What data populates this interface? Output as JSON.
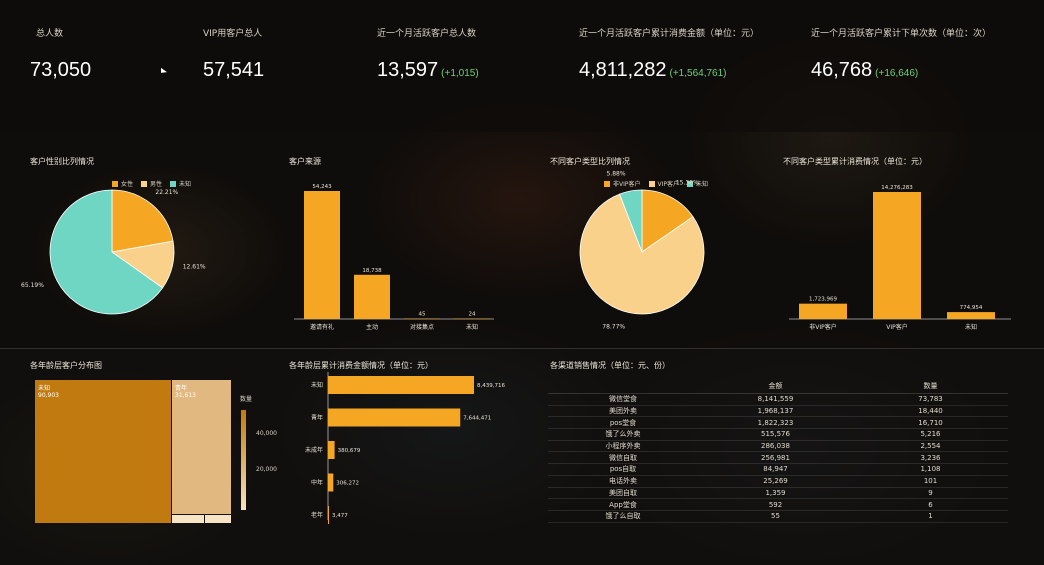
{
  "colors": {
    "orange": "#f5a623",
    "light_orange": "#f9d18a",
    "teal": "#6fd6c3",
    "dark_orange": "#c07a10",
    "tan": "#e0b880",
    "green": "#6fd07a"
  },
  "kpis": [
    {
      "label": "总人数",
      "value": "73,050",
      "delta": ""
    },
    {
      "label": "VIP用客户总人",
      "value": "57,541",
      "delta": ""
    },
    {
      "label": "近一个月活跃客户总人数",
      "value": "13,597",
      "delta": "(+1,015)"
    },
    {
      "label": "近一个月活跃客户累计消费金额（单位：元）",
      "value": "4,811,282",
      "delta": "(+1,564,761)"
    },
    {
      "label": "近一个月活跃客户累计下单次数（单位：次）",
      "value": "46,768",
      "delta": "(+16,646)"
    }
  ],
  "panels": {
    "gender": "客户性别比列情况",
    "source": "客户来源",
    "type_ratio": "不同客户类型比列情况",
    "type_spend": "不同客户类型累计消费情况（单位：元）",
    "age_dist": "各年龄层客户分布图",
    "age_spend": "各年龄层累计消费金额情况（单位：元）",
    "channel": "各渠道销售情况（单位：元、份）"
  },
  "legends": {
    "gender": [
      "女性",
      "男性",
      "未知"
    ],
    "type": [
      "非VIP客户",
      "VIP客户",
      "未知"
    ]
  },
  "treemap": {
    "big_label": "未知",
    "big_value": "90,903",
    "small_label": "青年",
    "small_value": "31,613",
    "legend_title": "数量",
    "ticks": [
      "40,000",
      "20,000"
    ]
  },
  "chart_data": [
    {
      "type": "pie",
      "title": "客户性别比列情况",
      "labels": [
        "女性",
        "男性",
        "未知"
      ],
      "values": [
        22.21,
        12.61,
        65.19
      ],
      "data_labels": [
        "22.21%",
        "12.61%",
        "65.19%"
      ]
    },
    {
      "type": "bar",
      "title": "客户来源",
      "categories": [
        "邀请有礼",
        "主动",
        "对接集点",
        "未知"
      ],
      "values": [
        54243,
        18738,
        45,
        24
      ],
      "data_labels": [
        "54,243",
        "18,738",
        "45",
        "24"
      ]
    },
    {
      "type": "pie",
      "title": "不同客户类型比列情况",
      "labels": [
        "非VIP客户",
        "VIP客户",
        "未知"
      ],
      "values": [
        15.36,
        78.77,
        5.88
      ],
      "data_labels": [
        "15.36%",
        "78.77%",
        "5.88%"
      ]
    },
    {
      "type": "bar",
      "title": "不同客户类型累计消费情况（单位：元）",
      "categories": [
        "非VIP客户",
        "VIP客户",
        "未知"
      ],
      "values": [
        1723969,
        14276283,
        774954
      ],
      "data_labels": [
        "1,723,969",
        "14,276,283",
        "774,954"
      ]
    },
    {
      "type": "bar",
      "orientation": "horizontal",
      "title": "各年龄层累计消费金额情况（单位：元）",
      "categories": [
        "未知",
        "青年",
        "未成年",
        "中年",
        "老年"
      ],
      "values": [
        8439716,
        7644471,
        380679,
        306272,
        3477
      ],
      "data_labels": [
        "8,439,716",
        "7,644,471",
        "380,679",
        "306,272",
        "3,477"
      ]
    },
    {
      "type": "table",
      "title": "各渠道销售情况（单位：元、份）",
      "columns": [
        "",
        "金额",
        "数量"
      ],
      "rows": [
        [
          "微信堂食",
          "8,141,559",
          "73,783"
        ],
        [
          "美团外卖",
          "1,968,137",
          "18,440"
        ],
        [
          "pos堂食",
          "1,822,323",
          "16,710"
        ],
        [
          "饿了么外卖",
          "515,576",
          "5,216"
        ],
        [
          "小程序外卖",
          "286,038",
          "2,554"
        ],
        [
          "微信自取",
          "256,981",
          "3,236"
        ],
        [
          "pos自取",
          "84,947",
          "1,108"
        ],
        [
          "电话外卖",
          "25,269",
          "101"
        ],
        [
          "美团自取",
          "1,359",
          "9"
        ],
        [
          "App堂食",
          "592",
          "6"
        ],
        [
          "饿了么自取",
          "55",
          "1"
        ]
      ]
    }
  ]
}
